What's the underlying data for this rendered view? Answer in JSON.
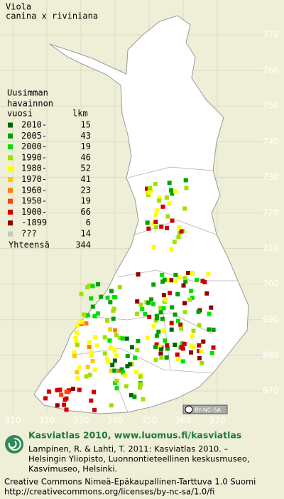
{
  "title": [
    "Viola",
    "canina x riviniana"
  ],
  "legend": {
    "header": [
      "Uusimman",
      "havainnon",
      "vuosi",
      "lkm"
    ],
    "rows": [
      {
        "label": "2010-",
        "count": 15,
        "color": "#006400"
      },
      {
        "label": "2005-",
        "count": 43,
        "color": "#00a000"
      },
      {
        "label": "2000-",
        "count": 19,
        "color": "#00e000"
      },
      {
        "label": "1990-",
        "count": 46,
        "color": "#a0e000"
      },
      {
        "label": "1980-",
        "count": 52,
        "color": "#ffff00"
      },
      {
        "label": "1970-",
        "count": 41,
        "color": "#ffc800"
      },
      {
        "label": "1960-",
        "count": 23,
        "color": "#ff8000"
      },
      {
        "label": "1950-",
        "count": 19,
        "color": "#ff4000"
      },
      {
        "label": "1900-",
        "count": 66,
        "color": "#d00000"
      },
      {
        "label": "-1899",
        "count": 6,
        "color": "#900000"
      },
      {
        "label": "???",
        "count": 14,
        "color": "#c8c8c8"
      }
    ],
    "total": {
      "label": "Yhteensä",
      "count": 344
    }
  },
  "grid": {
    "north": [
      770,
      760,
      750,
      740,
      730,
      720,
      710,
      700,
      690,
      680,
      670
    ],
    "east": [
      310,
      320,
      330,
      340,
      350,
      360,
      370
    ]
  },
  "license_badge": "BY-NC-SA",
  "footer": {
    "brand": "Kasviatlas 2010, www.luomus.fi/kasviatlas",
    "citation": [
      "Lampinen, R. & Lahti, T. 2011: Kasviatlas 2010. –",
      "Helsingin Yliopisto, Luonnontieteellinen keskusmuseo,",
      "Kasvimuseo, Helsinki."
    ],
    "license": [
      "Creative Commons Nimeä-Epäkaupallinen-Tarttuva 1.0 Suomi",
      "http://creativecommons.org/licenses/by-nc-sa/1.0/fi"
    ]
  }
}
